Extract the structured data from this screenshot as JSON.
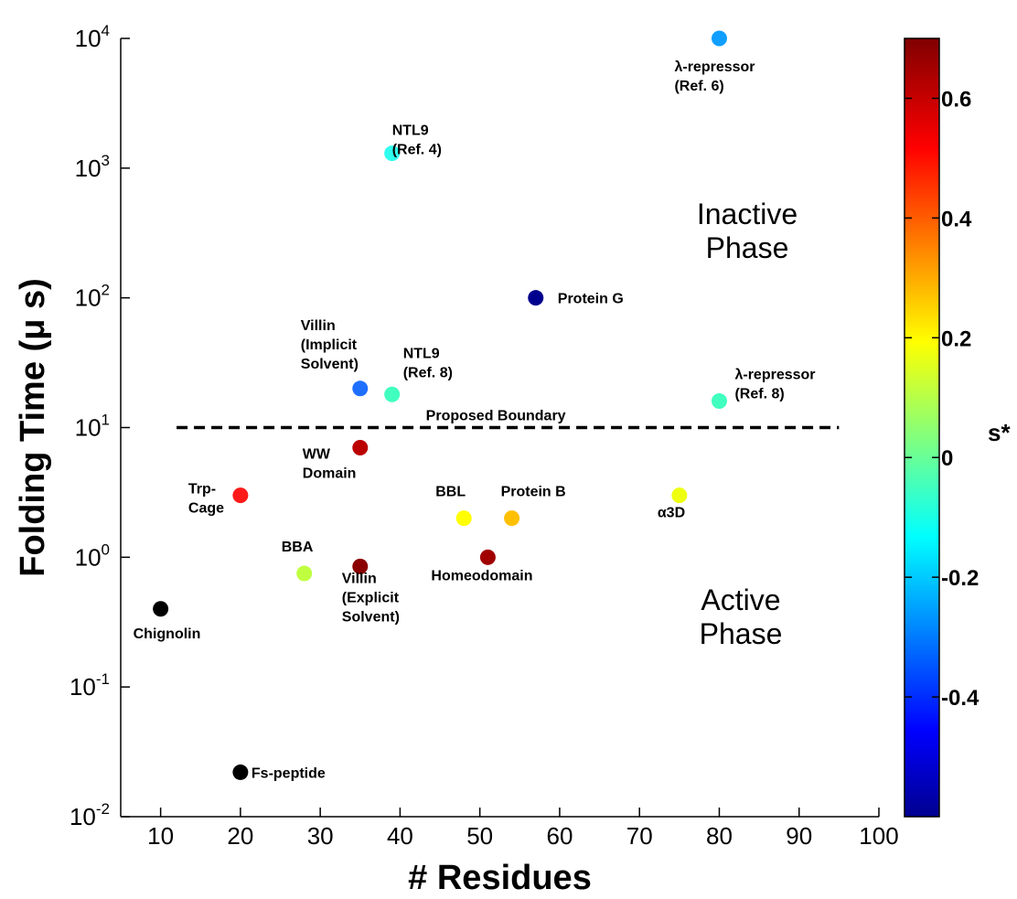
{
  "chart_data": {
    "type": "scatter",
    "xlabel": "# Residues",
    "ylabel": "Folding Time (μ s)",
    "xlim": [
      5,
      100
    ],
    "ylim_log10": [
      -2,
      4
    ],
    "y_scale": "log",
    "x_ticks": [
      10,
      20,
      30,
      40,
      50,
      60,
      70,
      80,
      90,
      100
    ],
    "y_ticks": [
      {
        "base": "10",
        "exp": "-2"
      },
      {
        "base": "10",
        "exp": "-1"
      },
      {
        "base": "10",
        "exp": "0"
      },
      {
        "base": "10",
        "exp": "1"
      },
      {
        "base": "10",
        "exp": "2"
      },
      {
        "base": "10",
        "exp": "3"
      },
      {
        "base": "10",
        "exp": "4"
      }
    ],
    "points": [
      {
        "x": 10,
        "y": 0.4,
        "s": null,
        "color": "#000000",
        "label": [
          "Chignolin"
        ]
      },
      {
        "x": 20,
        "y": 0.022,
        "s": null,
        "color": "#000000",
        "label": [
          "Fs-peptide"
        ]
      },
      {
        "x": 20,
        "y": 3,
        "s": 0.55,
        "color": "#ff1a1a",
        "label": [
          "Trp-",
          "Cage"
        ]
      },
      {
        "x": 28,
        "y": 0.75,
        "s": 0.1,
        "color": "#bfff40",
        "label": [
          "BBA"
        ]
      },
      {
        "x": 35,
        "y": 0.85,
        "s": 0.68,
        "color": "#8b0000",
        "label": [
          "Villin",
          "(Explicit",
          "Solvent)"
        ]
      },
      {
        "x": 35,
        "y": 7,
        "s": 0.62,
        "color": "#bb0000",
        "label": [
          "WW",
          "Domain"
        ]
      },
      {
        "x": 35,
        "y": 20,
        "s": -0.4,
        "color": "#1f6fff",
        "label": [
          "Villin",
          "(Implicit",
          "Solvent)"
        ]
      },
      {
        "x": 39,
        "y": 18,
        "s": -0.03,
        "color": "#40ffbf",
        "label": [
          "NTL9",
          "(Ref. 8)"
        ]
      },
      {
        "x": 39,
        "y": 1300,
        "s": -0.15,
        "color": "#30ffef",
        "label": [
          "NTL9",
          "(Ref. 4)"
        ]
      },
      {
        "x": 48,
        "y": 2,
        "s": 0.2,
        "color": "#ffff00",
        "label": [
          "BBL"
        ]
      },
      {
        "x": 51,
        "y": 1,
        "s": 0.65,
        "color": "#a00000",
        "label": [
          "Homeodomain"
        ]
      },
      {
        "x": 54,
        "y": 2,
        "s": 0.3,
        "color": "#ffc000",
        "label": [
          "Protein B"
        ]
      },
      {
        "x": 57,
        "y": 100,
        "s": -0.6,
        "color": "#00008f",
        "label": [
          "Protein G"
        ]
      },
      {
        "x": 75,
        "y": 3,
        "s": 0.15,
        "color": "#efff10",
        "label": [
          "α3D"
        ]
      },
      {
        "x": 80,
        "y": 16,
        "s": -0.05,
        "color": "#40ffbf",
        "label": [
          "λ-repressor",
          "(Ref. 8)"
        ]
      },
      {
        "x": 80,
        "y": 10000,
        "s": -0.3,
        "color": "#109fff",
        "label": [
          "λ-repressor",
          "(Ref. 6)"
        ]
      }
    ],
    "boundary": {
      "x": [
        12,
        95
      ],
      "y": 10,
      "label": "Proposed Boundary",
      "style": "dashed"
    },
    "annotations": [
      {
        "lines": [
          "Inactive",
          "Phase"
        ]
      },
      {
        "lines": [
          "Active",
          "Phase"
        ]
      }
    ],
    "colorbar": {
      "title": "s*",
      "range": [
        -0.6,
        0.7
      ],
      "ticks": [
        {
          "value": 0.6,
          "label": "0.6"
        },
        {
          "value": 0.4,
          "label": "0.4"
        },
        {
          "value": 0.2,
          "label": "0.2"
        },
        {
          "value": 0,
          "label": "0"
        },
        {
          "value": -0.2,
          "label": "-0.2"
        },
        {
          "value": -0.4,
          "label": "-0.4"
        }
      ],
      "colormap": "jet"
    }
  }
}
